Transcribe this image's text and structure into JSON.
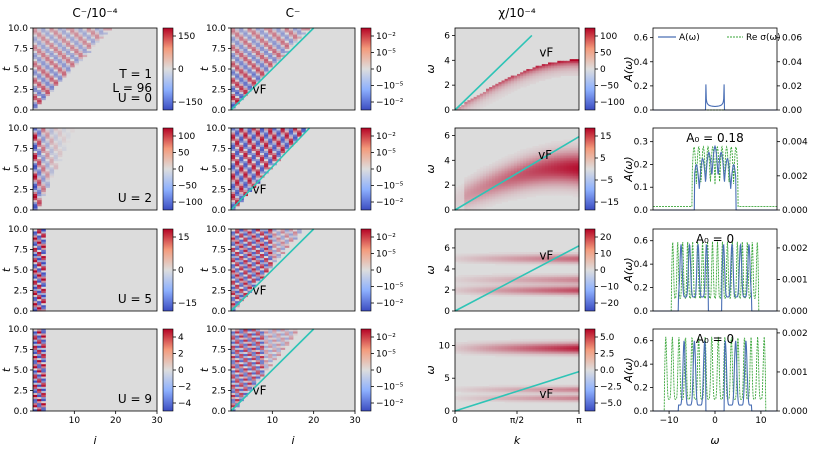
{
  "chart_data": {
    "type": "heatmap",
    "column_titles": [
      "C⁻/10⁻⁴",
      "C⁻",
      "χ/10⁻⁴",
      ""
    ],
    "row_U_labels": [
      "U = 0",
      "U = 2",
      "U = 5",
      "U = 9"
    ],
    "params": {
      "T": "T = 1",
      "L": "L = 96"
    },
    "col1": {
      "xlabel": "i",
      "ylabel": "t",
      "xticks": [
        "10",
        "20",
        "30"
      ],
      "yticks": [
        "0.0",
        "2.5",
        "5.0",
        "7.5",
        "10.0"
      ],
      "xlim": [
        0,
        30
      ],
      "ylim": [
        0,
        10
      ],
      "colorbars": [
        [
          "150",
          "0",
          "−150"
        ],
        [
          "100",
          "50",
          "0",
          "−50",
          "−100"
        ],
        [
          "15",
          "0",
          "−15"
        ],
        [
          "4",
          "2",
          "0",
          "−2",
          "−4"
        ]
      ]
    },
    "col2": {
      "xlabel": "i",
      "ylabel": "t",
      "xticks": [
        "10",
        "20",
        "30"
      ],
      "yticks": [
        "0.0",
        "2.5",
        "5.0",
        "7.5",
        "10.0"
      ],
      "xlim": [
        0,
        30
      ],
      "ylim": [
        0,
        10
      ],
      "line_label": "v_F",
      "colorbar": [
        "10⁻²",
        "10⁻⁵",
        "0",
        "−10⁻⁵",
        "−10⁻²"
      ]
    },
    "col3": {
      "xlabel": "k",
      "ylabel": "ω",
      "xticks": [
        "0",
        "π/2",
        "π"
      ],
      "line_label": "v_F",
      "yticks": [
        [
          "0",
          "2",
          "4",
          "6"
        ],
        [
          "0",
          "2",
          "4",
          "6"
        ],
        [
          "0",
          "2",
          "4",
          "6"
        ],
        [
          "0",
          "5",
          "10"
        ]
      ],
      "ylims": [
        [
          0,
          6.6
        ],
        [
          0,
          6.6
        ],
        [
          0,
          7.8
        ],
        [
          0,
          12.5
        ]
      ],
      "colorbars": [
        [
          "100",
          "50",
          "0",
          "−50",
          "−100"
        ],
        [
          "15",
          "5",
          "−5",
          "−15"
        ],
        [
          "20",
          "10",
          "0",
          "−10",
          "−20"
        ],
        [
          "5.0",
          "2.5",
          "0.0",
          "−2.5",
          "−5.0"
        ]
      ]
    },
    "col4": {
      "xlabel": "ω",
      "ylabel": "A(ω)",
      "xticks": [
        "−10",
        "0",
        "10"
      ],
      "xlim": [
        -13.5,
        13.5
      ],
      "legend": [
        "A(ω)",
        "Re σ(ω)"
      ],
      "annotations": [
        "",
        "A₀ = 0.18",
        "A₀ = 0",
        "A₀ = 0"
      ],
      "left_ticks": [
        [
          "0.0",
          "0.2",
          "0.4",
          "0.6"
        ],
        [
          "0.0",
          "0.1",
          "0.2",
          "0.3"
        ],
        [
          "0.0",
          "0.2",
          "0.4",
          "0.6"
        ],
        [
          "0.0",
          "0.2",
          "0.4",
          "0.6"
        ]
      ],
      "left_lims": [
        [
          0,
          0.68
        ],
        [
          0,
          0.36
        ],
        [
          0,
          0.7
        ],
        [
          0,
          0.7
        ]
      ],
      "right_ticks": [
        [
          "0.00",
          "0.02",
          "0.04",
          "0.06"
        ],
        [
          "0.000",
          "0.002",
          "0.004"
        ],
        [
          "0.000",
          "0.001",
          "0.002"
        ],
        [
          "0.000",
          "0.001",
          "0.002"
        ]
      ],
      "right_lims": [
        [
          0,
          0.068
        ],
        [
          0,
          0.0048
        ],
        [
          0,
          0.0026
        ],
        [
          0,
          0.0021
        ]
      ]
    }
  }
}
